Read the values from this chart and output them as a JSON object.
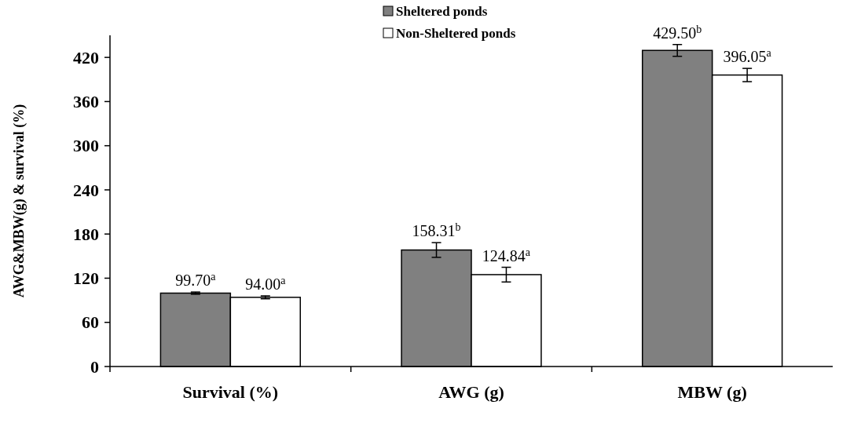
{
  "chart_data": {
    "type": "bar",
    "ylabel": "AWG&MBW(g) & survival (%)",
    "categories": [
      "Survival (%)",
      "AWG (g)",
      "MBW (g)"
    ],
    "series": [
      {
        "name": "Sheltered ponds",
        "color": "#808080",
        "values": [
          99.7,
          158.31,
          429.5
        ],
        "errors": [
          1.5,
          10,
          8
        ],
        "value_labels": [
          "99.70$^{a}$",
          "158.31$^{b}$",
          "429.50$^{b}$"
        ]
      },
      {
        "name": "Non-Sheltered ponds",
        "color": "#ffffff",
        "values": [
          94,
          124.84,
          396.05
        ],
        "errors": [
          2,
          10,
          9
        ],
        "value_labels": [
          "94.00$^{a}$",
          "124.84$^{a}$",
          "396.05$^{a}$"
        ]
      }
    ],
    "ylim": [
      0,
      450
    ],
    "yticks": [
      0,
      60,
      120,
      180,
      240,
      300,
      360,
      420
    ],
    "legend": "top",
    "grid": false
  }
}
